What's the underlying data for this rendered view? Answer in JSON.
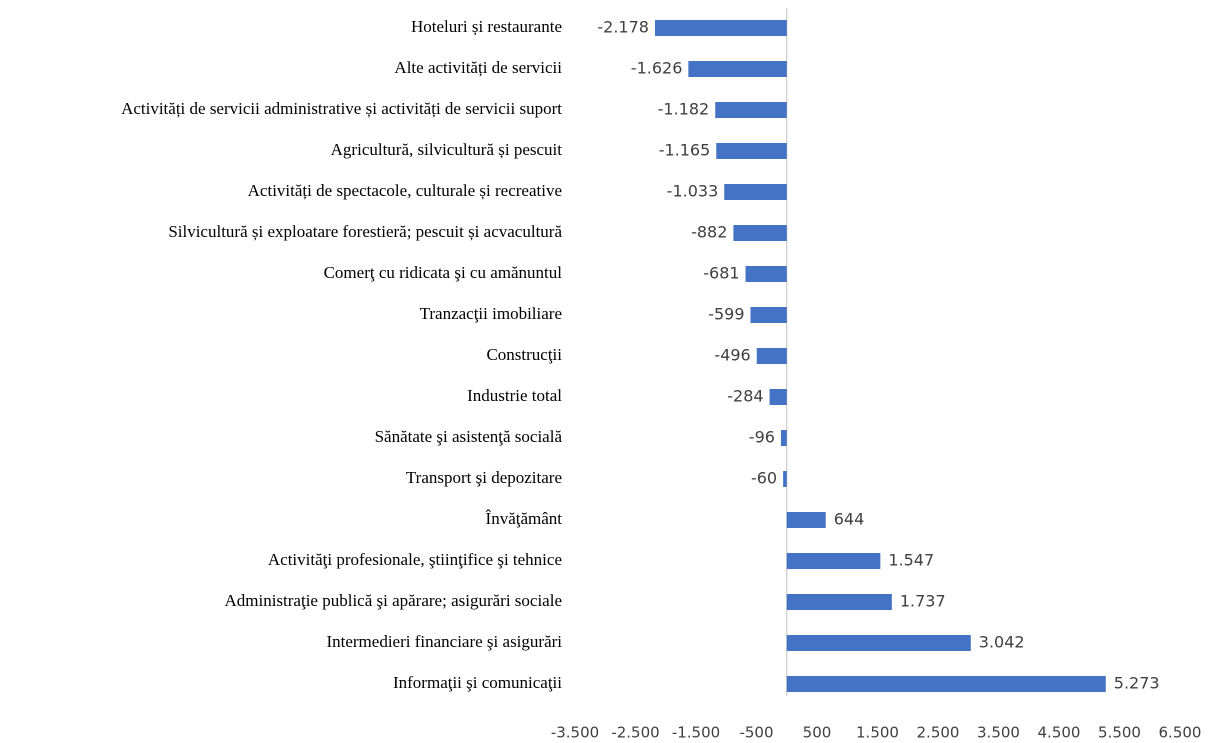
{
  "chart_data": {
    "type": "hbar",
    "color": "#4472c4",
    "categories": [
      "Hoteluri și restaurante",
      "Alte activități de servicii",
      "Activități de servicii administrative și activități de servicii suport",
      "Agricultură, silvicultură și pescuit",
      "Activități de spectacole, culturale și recreative",
      "Silvicultură și exploatare forestieră; pescuit și acvacultură",
      "Comerţ cu ridicata şi cu amănuntul",
      "Tranzacţii imobiliare",
      "Construcţii",
      "Industrie total",
      "Sănătate şi asistenţă socială",
      "Transport şi depozitare",
      "Învăţământ",
      "Activităţi profesionale, ştiinţifice şi tehnice",
      "Administraţie publică şi apărare; asigurări sociale",
      "Intermedieri financiare şi asigurări",
      "Informaţii şi comunicaţii"
    ],
    "values": [
      -2178,
      -1626,
      -1182,
      -1165,
      -1033,
      -882,
      -681,
      -599,
      -496,
      -284,
      -96,
      -60,
      644,
      1547,
      1737,
      3042,
      5273
    ],
    "value_labels": [
      "-2.178",
      "-1.626",
      "-1.182",
      "-1.165",
      "-1.033",
      "-882",
      "-681",
      "-599",
      "-496",
      "-284",
      "-96",
      "-60",
      "644",
      "1.547",
      "1.737",
      "3.042",
      "5.273"
    ],
    "xlim": [
      -3500,
      6500
    ],
    "xticks": [
      {
        "value": -3500,
        "label": "-3.500"
      },
      {
        "value": -2500,
        "label": "-2.500"
      },
      {
        "value": -1500,
        "label": "-1.500"
      },
      -500,
      500,
      {
        "value": 1500,
        "label": "1.500"
      },
      {
        "value": 2500,
        "label": "2.500"
      },
      {
        "value": 3500,
        "label": "3.500"
      },
      {
        "value": 4500,
        "label": "4.500"
      },
      {
        "value": 5500,
        "label": "5.500"
      },
      {
        "value": 6500,
        "label": "6.500"
      }
    ]
  }
}
